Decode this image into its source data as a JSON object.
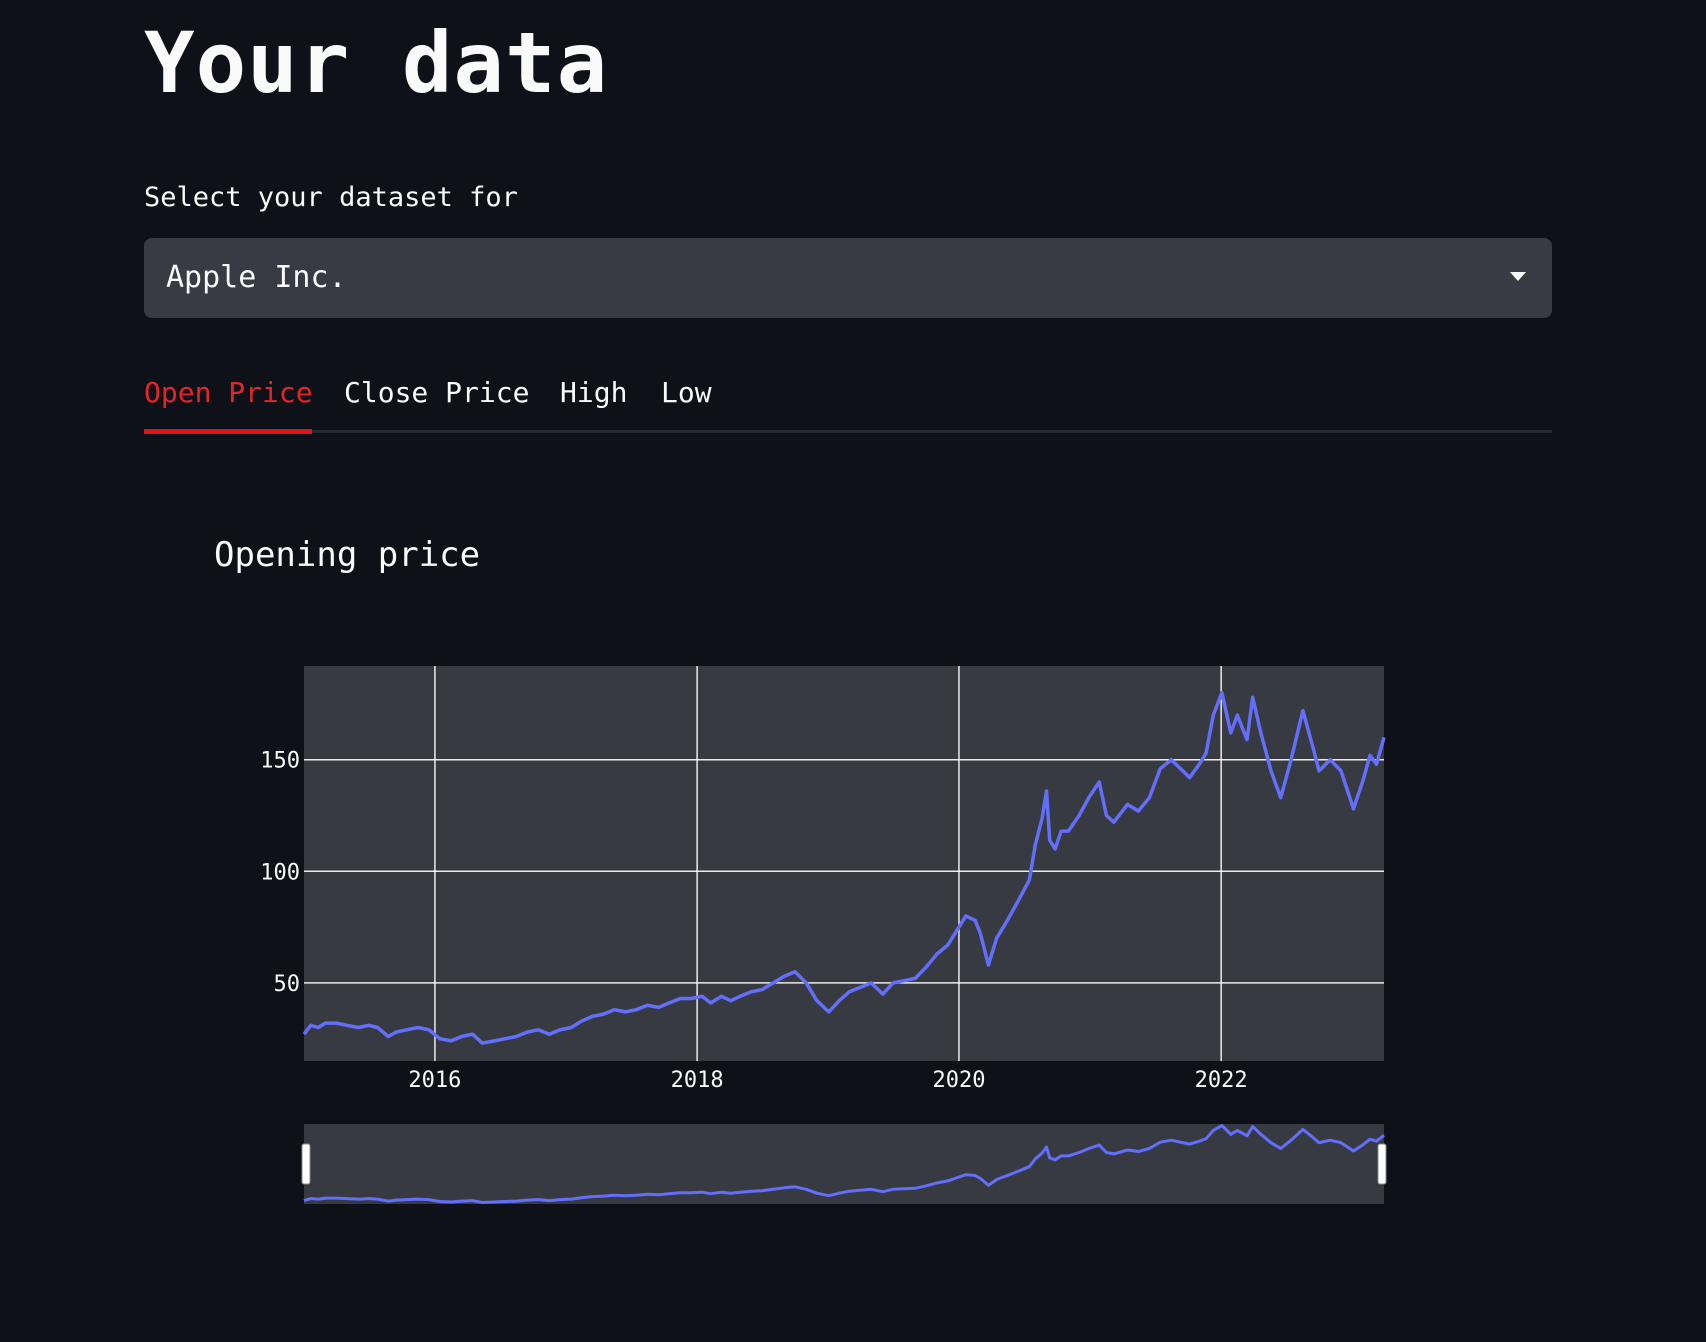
{
  "page": {
    "title": "Your data"
  },
  "dataset_select": {
    "label": "Select your dataset for",
    "value": "Apple Inc."
  },
  "tabs": [
    {
      "label": "Open Price",
      "active": true
    },
    {
      "label": "Close Price",
      "active": false
    },
    {
      "label": "High",
      "active": false
    },
    {
      "label": "Low",
      "active": false
    }
  ],
  "colors": {
    "background": "#0e1117",
    "panel": "#393b44",
    "plot_bg": "#383a42",
    "accent_red": "#e0262a",
    "line": "#636efa",
    "grid": "#ffffff"
  },
  "chart_data": {
    "type": "line",
    "title": "Opening price",
    "xlabel": "",
    "ylabel": "",
    "xlim": [
      "2015-01-01",
      "2023-03-31"
    ],
    "ylim": [
      15,
      192
    ],
    "x_ticks": [
      "2016",
      "2018",
      "2020",
      "2022"
    ],
    "y_ticks": [
      50,
      100,
      150
    ],
    "grid": true,
    "range_slider": true,
    "series": [
      {
        "x": [
          "2015-01-01",
          "2015-01-20",
          "2015-02-10",
          "2015-03-01",
          "2015-04-01",
          "2015-05-01",
          "2015-06-01",
          "2015-07-01",
          "2015-07-25",
          "2015-08-24",
          "2015-09-15",
          "2015-10-15",
          "2015-11-15",
          "2015-12-15",
          "2016-01-15",
          "2016-02-15",
          "2016-03-15",
          "2016-04-15",
          "2016-05-12",
          "2016-06-15",
          "2016-07-15",
          "2016-08-15",
          "2016-09-15",
          "2016-10-15",
          "2016-11-15",
          "2016-12-15",
          "2017-01-15",
          "2017-02-15",
          "2017-03-15",
          "2017-04-15",
          "2017-05-15",
          "2017-06-15",
          "2017-07-15",
          "2017-08-15",
          "2017-09-15",
          "2017-10-15",
          "2017-11-15",
          "2017-12-15",
          "2018-01-15",
          "2018-02-08",
          "2018-03-10",
          "2018-04-05",
          "2018-05-01",
          "2018-06-01",
          "2018-07-01",
          "2018-08-01",
          "2018-09-01",
          "2018-10-01",
          "2018-11-01",
          "2018-12-01",
          "2019-01-03",
          "2019-02-01",
          "2019-03-01",
          "2019-04-01",
          "2019-05-01",
          "2019-06-03",
          "2019-07-01",
          "2019-08-01",
          "2019-09-01",
          "2019-10-01",
          "2019-11-01",
          "2019-12-01",
          "2020-01-01",
          "2020-01-20",
          "2020-02-15",
          "2020-03-01",
          "2020-03-23",
          "2020-04-15",
          "2020-05-15",
          "2020-06-15",
          "2020-07-15",
          "2020-08-01",
          "2020-08-20",
          "2020-09-01",
          "2020-09-10",
          "2020-09-25",
          "2020-10-12",
          "2020-11-01",
          "2020-12-01",
          "2020-12-28",
          "2021-01-26",
          "2021-02-15",
          "2021-03-08",
          "2021-04-15",
          "2021-05-15",
          "2021-06-15",
          "2021-07-15",
          "2021-08-15",
          "2021-09-10",
          "2021-10-05",
          "2021-11-01",
          "2021-11-20",
          "2021-12-10",
          "2022-01-03",
          "2022-01-28",
          "2022-02-15",
          "2022-03-14",
          "2022-03-30",
          "2022-04-20",
          "2022-05-20",
          "2022-06-16",
          "2022-07-15",
          "2022-08-17",
          "2022-09-15",
          "2022-10-01",
          "2022-11-01",
          "2022-12-01",
          "2023-01-05",
          "2023-02-01",
          "2023-02-20",
          "2023-03-10",
          "2023-03-31"
        ],
        "y": [
          27,
          31,
          30,
          32,
          32,
          31,
          30,
          31,
          30,
          26,
          28,
          29,
          30,
          29,
          25,
          24,
          26,
          27,
          23,
          24,
          25,
          26,
          28,
          29,
          27,
          29,
          30,
          33,
          35,
          36,
          38,
          37,
          38,
          40,
          39,
          41,
          43,
          43,
          44,
          41,
          44,
          42,
          44,
          46,
          47,
          50,
          53,
          55,
          50,
          42,
          37,
          42,
          46,
          48,
          50,
          45,
          50,
          51,
          52,
          57,
          63,
          67,
          75,
          80,
          78,
          72,
          58,
          70,
          78,
          87,
          96,
          112,
          124,
          136,
          114,
          110,
          118,
          118,
          125,
          133,
          140,
          125,
          122,
          130,
          127,
          133,
          146,
          150,
          146,
          142,
          148,
          153,
          170,
          180,
          162,
          170,
          159,
          178,
          163,
          145,
          133,
          150,
          172,
          155,
          145,
          150,
          145,
          128,
          141,
          152,
          148,
          160
        ]
      }
    ]
  }
}
